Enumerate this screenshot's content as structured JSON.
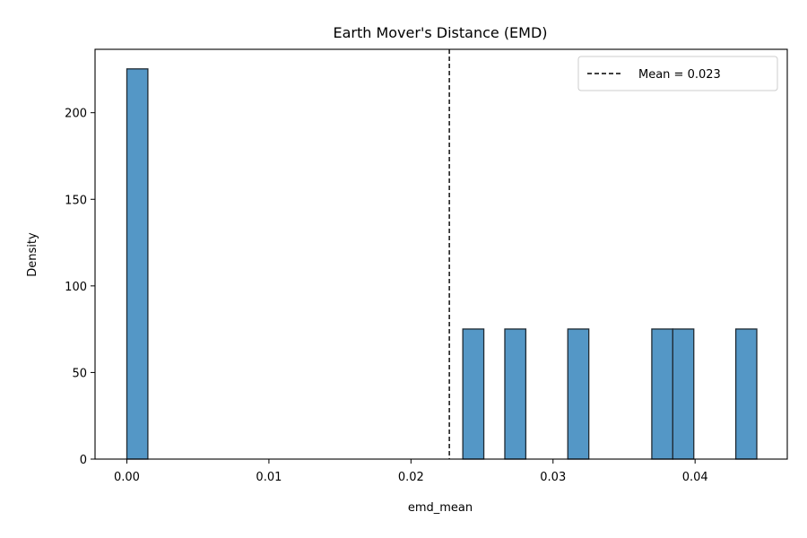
{
  "chart_data": {
    "type": "bar",
    "title": "Earth Mover's Distance (EMD)",
    "xlabel": "emd_mean",
    "ylabel": "Density",
    "xlim": [
      -0.00224,
      0.04649
    ],
    "ylim": [
      0,
      236.6
    ],
    "xticks": [
      0.0,
      0.01,
      0.02,
      0.03,
      0.04
    ],
    "xtick_labels": [
      "0.00",
      "0.01",
      "0.02",
      "0.03",
      "0.04"
    ],
    "yticks": [
      0,
      50,
      100,
      150,
      200
    ],
    "ytick_labels": [
      "0",
      "50",
      "100",
      "150",
      "200"
    ],
    "bin_width": 0.001478,
    "bins": [
      {
        "x0": 0.0,
        "x1": 0.001478,
        "density": 225.3
      },
      {
        "x0": 0.02365,
        "x1": 0.025128,
        "density": 75.1
      },
      {
        "x0": 0.026606,
        "x1": 0.028084,
        "density": 75.1
      },
      {
        "x0": 0.031041,
        "x1": 0.032519,
        "density": 75.1
      },
      {
        "x0": 0.036953,
        "x1": 0.038431,
        "density": 75.1
      },
      {
        "x0": 0.038431,
        "x1": 0.039909,
        "density": 75.1
      },
      {
        "x0": 0.042866,
        "x1": 0.044344,
        "density": 75.1
      }
    ],
    "bar_color": "#5497c6",
    "bar_edge_color": "#1f2a33",
    "mean_line": {
      "value": 0.0227,
      "label": "Mean = 0.023",
      "style": "dashed",
      "color": "#000000"
    },
    "legend": {
      "position": "top-right",
      "entries": [
        "Mean = 0.023"
      ]
    },
    "grid": false
  }
}
